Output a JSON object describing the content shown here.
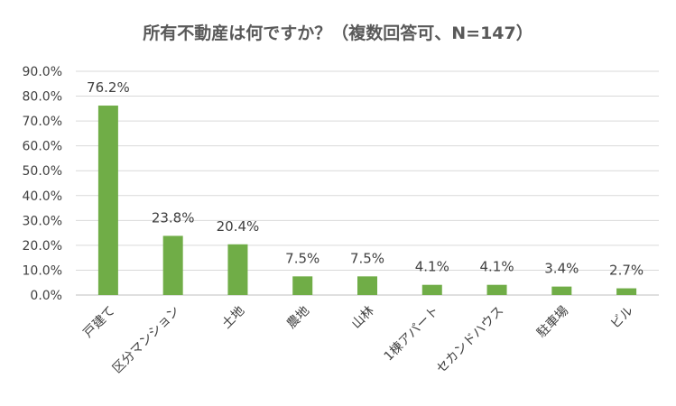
{
  "chart_data": {
    "type": "bar",
    "title": "所有不動産は何ですか？（複数回答可、N=147）",
    "categories": [
      "戸建て",
      "区分マンション",
      "土地",
      "農地",
      "山林",
      "1棟アパート",
      "セカンドハウス",
      "駐車場",
      "ビル"
    ],
    "values": [
      76.2,
      23.8,
      20.4,
      7.5,
      7.5,
      4.1,
      4.1,
      3.4,
      2.7
    ],
    "data_labels": [
      "76.2%",
      "23.8%",
      "20.4%",
      "7.5%",
      "7.5%",
      "4.1%",
      "4.1%",
      "3.4%",
      "2.7%"
    ],
    "y_ticks": [
      "0.0%",
      "10.0%",
      "20.0%",
      "30.0%",
      "40.0%",
      "50.0%",
      "60.0%",
      "70.0%",
      "80.0%",
      "90.0%"
    ],
    "ylim": [
      0,
      90
    ],
    "xlabel": "",
    "ylabel": "",
    "grid": true,
    "legend": "none",
    "bar_color": "#70ad47"
  }
}
